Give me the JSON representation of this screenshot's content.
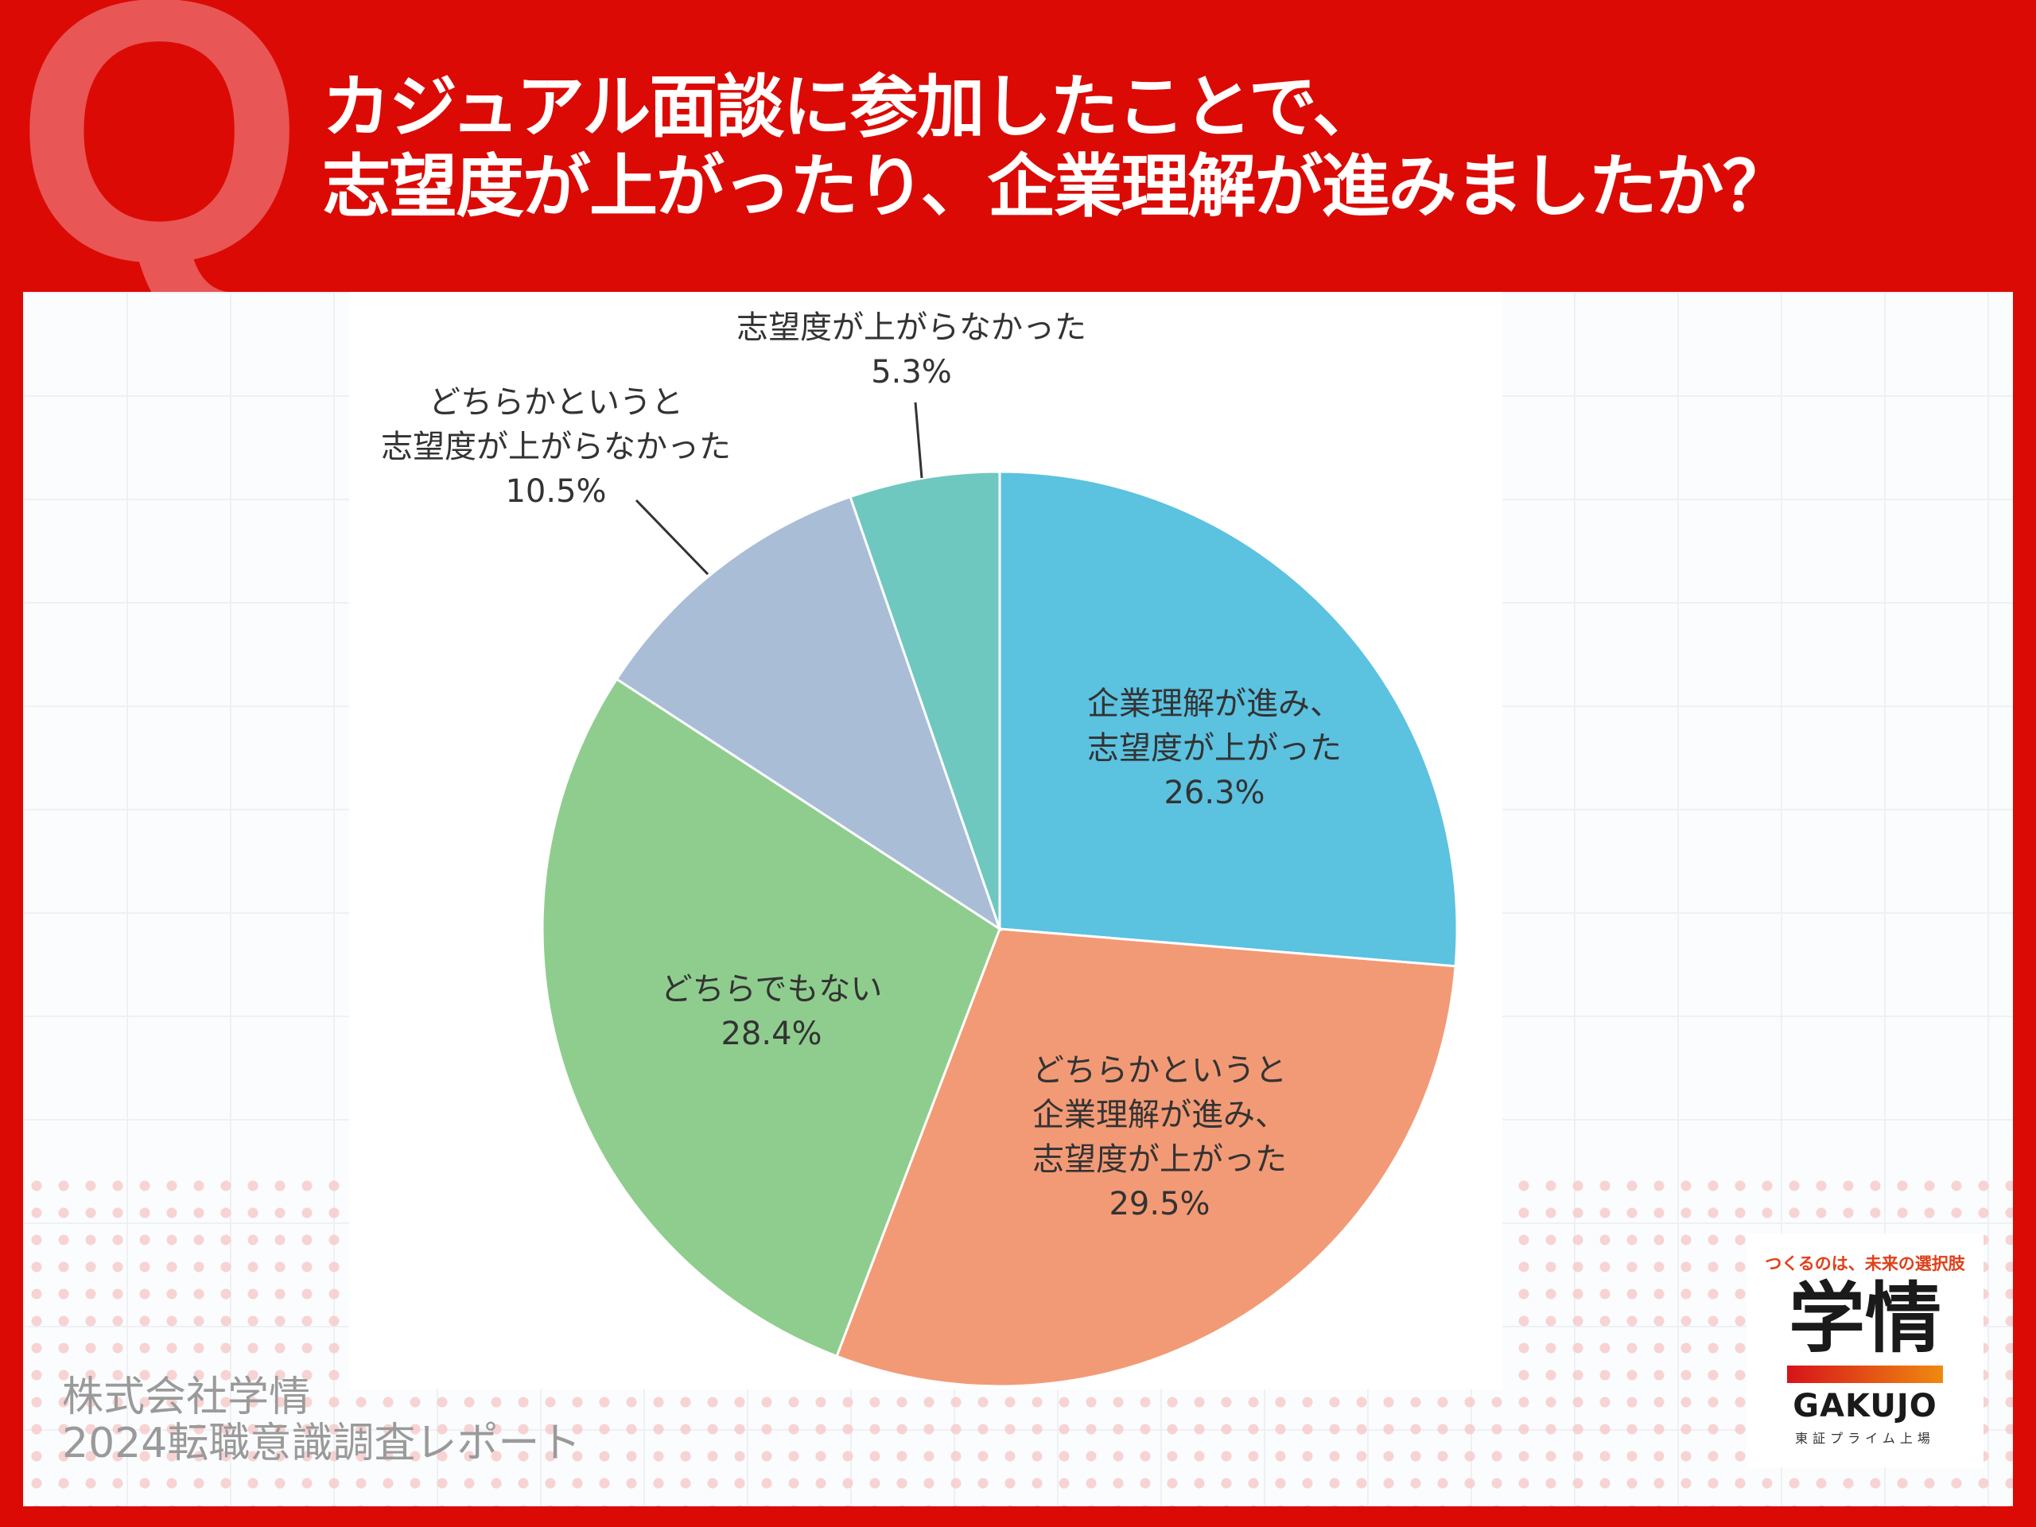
{
  "header": {
    "q_mark": "Q",
    "title_line1": "カジュアル面談に参加したことで、",
    "title_line2": "志望度が上がったり、企業理解が進みましたか？"
  },
  "chart_data": {
    "type": "pie",
    "title": "カジュアル面談に参加したことで、志望度が上がったり、企業理解が進みましたか？",
    "unit": "%",
    "start": "12 o'clock, clockwise",
    "slices": [
      {
        "label_lines": [
          "企業理解が進み、",
          "志望度が上がった"
        ],
        "value": 26.3,
        "value_label": "26.3%",
        "color": "#5bc2e0"
      },
      {
        "label_lines": [
          "どちらかというと",
          "企業理解が進み、",
          "志望度が上がった"
        ],
        "value": 29.5,
        "value_label": "29.5%",
        "color": "#f29a76"
      },
      {
        "label_lines": [
          "どちらでもない"
        ],
        "value": 28.4,
        "value_label": "28.4%",
        "color": "#8fcd8e"
      },
      {
        "label_lines": [
          "どちらかというと",
          "志望度が上がらなかった"
        ],
        "value": 10.5,
        "value_label": "10.5%",
        "color": "#a9bdd7"
      },
      {
        "label_lines": [
          "志望度が上がらなかった"
        ],
        "value": 5.3,
        "value_label": "5.3%",
        "color": "#6fc8c0"
      }
    ]
  },
  "footer": {
    "company": "株式会社学情",
    "report": "2024転職意識調査レポート"
  },
  "logo": {
    "tagline": "つくるのは、未来の選択肢",
    "name_jp": "学情",
    "name_en": "GAKUJO",
    "listing": "東証プライム上場"
  }
}
